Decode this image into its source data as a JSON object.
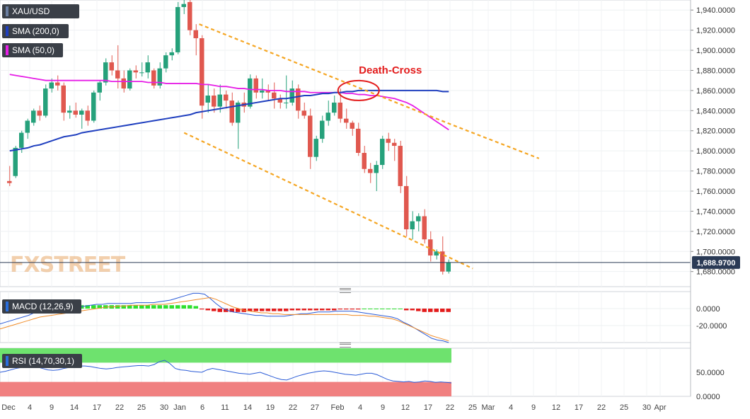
{
  "legend": {
    "symbol": "XAU/USD",
    "sma200": "SMA (200,0)",
    "sma50": "SMA (50,0)",
    "macd": "MACD (12,26,9)",
    "rsi": "RSI (14,70,30,1)"
  },
  "watermark": "FXSTREET",
  "annotation": "Death-Cross",
  "colors": {
    "up": "#26a17b",
    "down": "#e0584f",
    "sma200": "#1f3fbf",
    "sma50": "#e61ee6",
    "channel": "#f5a623",
    "annotation": "#e31c1c",
    "macd_pos": "#2ee02e",
    "macd_neg": "#e31c1c",
    "macd_line": "#2a5bd7",
    "signal_line": "#f08c28",
    "rsi_line": "#2a5bd7",
    "rsi_upper_fill": "#6ee26e",
    "rsi_lower_fill": "#f08080"
  },
  "chart_data": [
    {
      "type": "candlestick",
      "ylim": [
        1665,
        1950
      ],
      "y_ticks": [
        "1,940.0000",
        "1,920.0000",
        "1,900.0000",
        "1,880.0000",
        "1,860.0000",
        "1,840.0000",
        "1,820.0000",
        "1,800.0000",
        "1,780.0000",
        "1,760.0000",
        "1,740.0000",
        "1,720.0000",
        "1,700.0000",
        "1,680.0000"
      ],
      "x_labels": [
        "Dec",
        "4",
        "9",
        "14",
        "17",
        "22",
        "25",
        "30",
        "Jan",
        "6",
        "11",
        "14",
        "19",
        "22",
        "27",
        "Feb",
        "4",
        "9",
        "12",
        "17",
        "22",
        "25",
        "Mar",
        "4",
        "9",
        "12",
        "17",
        "22",
        "25",
        "30",
        "Apr"
      ],
      "last_price": "1,688.9700",
      "last_price_value": 1688.97,
      "candles": [
        {
          "o": 1770,
          "h": 1785,
          "l": 1765,
          "c": 1768
        },
        {
          "o": 1775,
          "h": 1805,
          "l": 1773,
          "c": 1803
        },
        {
          "o": 1803,
          "h": 1820,
          "l": 1798,
          "c": 1818
        },
        {
          "o": 1818,
          "h": 1832,
          "l": 1812,
          "c": 1830
        },
        {
          "o": 1828,
          "h": 1842,
          "l": 1825,
          "c": 1840
        },
        {
          "o": 1840,
          "h": 1845,
          "l": 1830,
          "c": 1835
        },
        {
          "o": 1835,
          "h": 1866,
          "l": 1833,
          "c": 1862
        },
        {
          "o": 1862,
          "h": 1872,
          "l": 1858,
          "c": 1868
        },
        {
          "o": 1868,
          "h": 1875,
          "l": 1860,
          "c": 1865
        },
        {
          "o": 1865,
          "h": 1868,
          "l": 1830,
          "c": 1838
        },
        {
          "o": 1838,
          "h": 1845,
          "l": 1832,
          "c": 1840
        },
        {
          "o": 1840,
          "h": 1848,
          "l": 1833,
          "c": 1836
        },
        {
          "o": 1836,
          "h": 1842,
          "l": 1822,
          "c": 1840
        },
        {
          "o": 1840,
          "h": 1845,
          "l": 1825,
          "c": 1830
        },
        {
          "o": 1830,
          "h": 1860,
          "l": 1828,
          "c": 1858
        },
        {
          "o": 1858,
          "h": 1870,
          "l": 1850,
          "c": 1868
        },
        {
          "o": 1868,
          "h": 1892,
          "l": 1865,
          "c": 1888
        },
        {
          "o": 1888,
          "h": 1895,
          "l": 1875,
          "c": 1880
        },
        {
          "o": 1880,
          "h": 1905,
          "l": 1862,
          "c": 1872
        },
        {
          "o": 1872,
          "h": 1880,
          "l": 1858,
          "c": 1862
        },
        {
          "o": 1862,
          "h": 1882,
          "l": 1860,
          "c": 1880
        },
        {
          "o": 1880,
          "h": 1885,
          "l": 1872,
          "c": 1878
        },
        {
          "o": 1878,
          "h": 1888,
          "l": 1874,
          "c": 1878
        },
        {
          "o": 1878,
          "h": 1895,
          "l": 1872,
          "c": 1888
        },
        {
          "o": 1880,
          "h": 1882,
          "l": 1862,
          "c": 1865
        },
        {
          "o": 1865,
          "h": 1888,
          "l": 1862,
          "c": 1882
        },
        {
          "o": 1882,
          "h": 1898,
          "l": 1878,
          "c": 1895
        },
        {
          "o": 1895,
          "h": 1902,
          "l": 1890,
          "c": 1898
        },
        {
          "o": 1898,
          "h": 1948,
          "l": 1896,
          "c": 1943
        },
        {
          "o": 1943,
          "h": 1952,
          "l": 1936,
          "c": 1946
        },
        {
          "o": 1948,
          "h": 1955,
          "l": 1915,
          "c": 1920
        },
        {
          "o": 1920,
          "h": 1926,
          "l": 1895,
          "c": 1912
        },
        {
          "o": 1912,
          "h": 1915,
          "l": 1832,
          "c": 1845
        },
        {
          "o": 1848,
          "h": 1866,
          "l": 1838,
          "c": 1855
        },
        {
          "o": 1855,
          "h": 1862,
          "l": 1838,
          "c": 1844
        },
        {
          "o": 1844,
          "h": 1866,
          "l": 1838,
          "c": 1856
        },
        {
          "o": 1856,
          "h": 1860,
          "l": 1842,
          "c": 1850
        },
        {
          "o": 1850,
          "h": 1858,
          "l": 1825,
          "c": 1828
        },
        {
          "o": 1828,
          "h": 1850,
          "l": 1802,
          "c": 1848
        },
        {
          "o": 1848,
          "h": 1858,
          "l": 1838,
          "c": 1844
        },
        {
          "o": 1844,
          "h": 1876,
          "l": 1842,
          "c": 1872
        },
        {
          "o": 1872,
          "h": 1875,
          "l": 1852,
          "c": 1858
        },
        {
          "o": 1858,
          "h": 1872,
          "l": 1852,
          "c": 1860
        },
        {
          "o": 1860,
          "h": 1866,
          "l": 1850,
          "c": 1858
        },
        {
          "o": 1858,
          "h": 1868,
          "l": 1842,
          "c": 1852
        },
        {
          "o": 1852,
          "h": 1856,
          "l": 1842,
          "c": 1848
        },
        {
          "o": 1848,
          "h": 1875,
          "l": 1842,
          "c": 1848
        },
        {
          "o": 1848,
          "h": 1870,
          "l": 1845,
          "c": 1862
        },
        {
          "o": 1862,
          "h": 1866,
          "l": 1832,
          "c": 1840
        },
        {
          "o": 1840,
          "h": 1848,
          "l": 1832,
          "c": 1835
        },
        {
          "o": 1835,
          "h": 1842,
          "l": 1782,
          "c": 1794
        },
        {
          "o": 1794,
          "h": 1815,
          "l": 1790,
          "c": 1812
        },
        {
          "o": 1812,
          "h": 1835,
          "l": 1808,
          "c": 1830
        },
        {
          "o": 1830,
          "h": 1850,
          "l": 1825,
          "c": 1838
        },
        {
          "o": 1838,
          "h": 1855,
          "l": 1835,
          "c": 1848
        },
        {
          "o": 1848,
          "h": 1862,
          "l": 1828,
          "c": 1832
        },
        {
          "o": 1832,
          "h": 1842,
          "l": 1822,
          "c": 1828
        },
        {
          "o": 1828,
          "h": 1830,
          "l": 1815,
          "c": 1822
        },
        {
          "o": 1822,
          "h": 1828,
          "l": 1795,
          "c": 1798
        },
        {
          "o": 1798,
          "h": 1805,
          "l": 1778,
          "c": 1782
        },
        {
          "o": 1782,
          "h": 1788,
          "l": 1768,
          "c": 1778
        },
        {
          "o": 1778,
          "h": 1790,
          "l": 1760,
          "c": 1786
        },
        {
          "o": 1786,
          "h": 1815,
          "l": 1782,
          "c": 1812
        },
        {
          "o": 1812,
          "h": 1818,
          "l": 1800,
          "c": 1808
        },
        {
          "o": 1808,
          "h": 1812,
          "l": 1790,
          "c": 1805
        },
        {
          "o": 1805,
          "h": 1810,
          "l": 1758,
          "c": 1765
        },
        {
          "o": 1765,
          "h": 1775,
          "l": 1715,
          "c": 1722
        },
        {
          "o": 1722,
          "h": 1740,
          "l": 1712,
          "c": 1730
        },
        {
          "o": 1730,
          "h": 1738,
          "l": 1720,
          "c": 1735
        },
        {
          "o": 1735,
          "h": 1742,
          "l": 1708,
          "c": 1712
        },
        {
          "o": 1712,
          "h": 1720,
          "l": 1690,
          "c": 1696
        },
        {
          "o": 1696,
          "h": 1702,
          "l": 1692,
          "c": 1700
        },
        {
          "o": 1700,
          "h": 1715,
          "l": 1677,
          "c": 1680
        },
        {
          "o": 1680,
          "h": 1692,
          "l": 1678,
          "c": 1689
        }
      ],
      "sma200": [
        1800,
        1801,
        1802,
        1803,
        1805,
        1806,
        1808,
        1810,
        1812,
        1814,
        1815,
        1816,
        1818,
        1819,
        1820,
        1821,
        1822,
        1823,
        1824,
        1825,
        1826,
        1827,
        1828,
        1829,
        1830,
        1831,
        1832,
        1833,
        1834,
        1835,
        1836,
        1838,
        1839,
        1840,
        1841,
        1842,
        1843,
        1844,
        1845,
        1846,
        1847,
        1848,
        1849,
        1850,
        1851,
        1852,
        1852,
        1853,
        1854,
        1855,
        1855,
        1856,
        1857,
        1857,
        1858,
        1858,
        1859,
        1859,
        1860,
        1860,
        1860,
        1860,
        1860,
        1860,
        1860,
        1860,
        1860,
        1860,
        1860,
        1860,
        1860,
        1860,
        1859,
        1859
      ],
      "sma50": [
        1876,
        1875,
        1874,
        1873,
        1872,
        1871,
        1870,
        1870,
        1870,
        1870,
        1870,
        1870,
        1870,
        1870,
        1870,
        1870,
        1870,
        1869,
        1869,
        1869,
        1869,
        1869,
        1869,
        1868,
        1868,
        1868,
        1867,
        1867,
        1867,
        1867,
        1867,
        1867,
        1866,
        1866,
        1865,
        1864,
        1864,
        1863,
        1862,
        1862,
        1861,
        1861,
        1861,
        1860,
        1860,
        1860,
        1859,
        1859,
        1859,
        1859,
        1858,
        1858,
        1858,
        1858,
        1858,
        1858,
        1857,
        1857,
        1856,
        1856,
        1855,
        1855,
        1854,
        1853,
        1852,
        1850,
        1848,
        1845,
        1841,
        1837,
        1833,
        1829,
        1825,
        1821
      ],
      "channel_upper": [
        [
          31.5,
          1926
        ],
        [
          73.5,
          1826
        ],
        [
          88,
          1792.5
        ]
      ],
      "channel_lower": [
        [
          29,
          1818
        ],
        [
          72,
          1697
        ],
        [
          77,
          1683
        ]
      ],
      "death_cross_index": 58
    },
    {
      "type": "bar",
      "name": "MACD (12,26,9)",
      "ylim": [
        -40,
        20
      ],
      "y_ticks": [
        "0.0000",
        "-20.0000"
      ],
      "y_tick_values": [
        0,
        -20
      ],
      "histogram": [
        1,
        1,
        1,
        2,
        2,
        3,
        3,
        3,
        3,
        3,
        3,
        3,
        4,
        4,
        4,
        4,
        4,
        4,
        4,
        4,
        4,
        4,
        4,
        4,
        4,
        4,
        4,
        4,
        4,
        4,
        4,
        3,
        -1,
        -2,
        -3,
        -4,
        -4,
        -4,
        -4,
        -4,
        -3,
        -3,
        -3,
        -3,
        -3,
        -3,
        -3,
        -2,
        -2,
        -2,
        -2,
        -2,
        -2,
        -2,
        -2,
        -1,
        -1,
        -1,
        -1,
        0,
        0,
        0,
        0,
        0,
        0,
        0,
        -2,
        -2,
        -3,
        -4,
        -4,
        -4,
        -4,
        -4
      ],
      "macd": [
        -18,
        -16,
        -14,
        -12,
        -10,
        -8,
        -5,
        -3,
        -2,
        -1,
        0,
        1,
        1,
        2,
        2,
        3,
        4,
        5,
        5,
        6,
        6,
        6,
        6,
        6,
        7,
        7,
        7,
        7,
        8,
        9,
        10,
        12,
        14,
        16,
        18,
        18,
        17,
        12,
        6,
        1,
        -2,
        -4,
        -5,
        -6,
        -7,
        -8,
        -8,
        -9,
        -9,
        -9,
        -9,
        -8,
        -7,
        -6,
        -6,
        -5,
        -4,
        -4,
        -4,
        -3,
        -3,
        -3,
        -3,
        -4,
        -5,
        -6,
        -7,
        -8,
        -9,
        -10,
        -12,
        -16,
        -19,
        -23,
        -27,
        -31,
        -35,
        -37,
        -38,
        -40
      ],
      "signal": [
        -24,
        -22,
        -20,
        -18,
        -16,
        -14,
        -12,
        -10,
        -9,
        -8,
        -7,
        -6,
        -5,
        -4,
        -3,
        -2,
        -1,
        0,
        1,
        2,
        2,
        3,
        3,
        4,
        4,
        4,
        4,
        5,
        5,
        5,
        6,
        7,
        8,
        9,
        10,
        11,
        12,
        13,
        11,
        8,
        5,
        2,
        0,
        -2,
        -3,
        -4,
        -5,
        -5,
        -6,
        -6,
        -7,
        -7,
        -7,
        -7,
        -7,
        -7,
        -7,
        -7,
        -7,
        -7,
        -7,
        -7,
        -8,
        -8,
        -8,
        -9,
        -9,
        -10,
        -11,
        -12,
        -14,
        -17,
        -20,
        -23,
        -26,
        -29,
        -32,
        -34,
        -36,
        -38
      ]
    },
    {
      "type": "line",
      "name": "RSI (14,70,30,1)",
      "ylim": [
        0,
        100
      ],
      "y_ticks": [
        "50.0000",
        "0.0000"
      ],
      "y_tick_values": [
        50,
        0
      ],
      "upper_band": 70,
      "lower_band": 30,
      "rsi": [
        50,
        52,
        55,
        58,
        60,
        62,
        62,
        61,
        58,
        55,
        54,
        55,
        58,
        60,
        62,
        63,
        63,
        62,
        60,
        58,
        57,
        58,
        60,
        61,
        62,
        63,
        64,
        64,
        63,
        66,
        72,
        75,
        68,
        58,
        55,
        54,
        52,
        51,
        50,
        55,
        58,
        56,
        54,
        52,
        50,
        48,
        47,
        46,
        48,
        50,
        46,
        42,
        38,
        35,
        34,
        38,
        42,
        45,
        48,
        50,
        52,
        53,
        52,
        50,
        48,
        46,
        45,
        44,
        46,
        48,
        48,
        45,
        40,
        35,
        32,
        31,
        30,
        31,
        29,
        30,
        32,
        31,
        29,
        30,
        29,
        28
      ]
    }
  ]
}
